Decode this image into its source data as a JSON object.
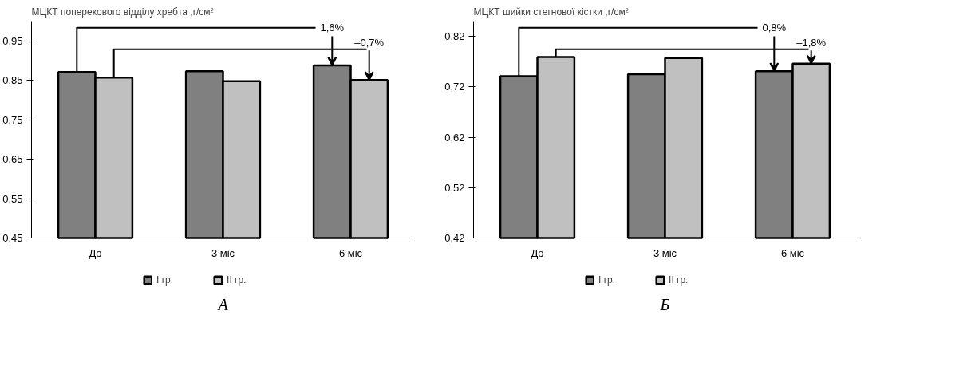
{
  "chart_data": [
    {
      "type": "bar",
      "title": "МЦКТ поперекового відділу хребта ,г/см²",
      "categories": [
        "До",
        "3 міс",
        "6 міс"
      ],
      "series": [
        {
          "name": "I гр.",
          "color": "#808080",
          "values": [
            0.871,
            0.873,
            0.888
          ]
        },
        {
          "name": "II гр.",
          "color": "#c0c0c0",
          "values": [
            0.857,
            0.848,
            0.851
          ]
        }
      ],
      "ylim": [
        0.45,
        1.0
      ],
      "yticks": [
        {
          "value": 0.45,
          "label": "0,45"
        },
        {
          "value": 0.55,
          "label": "0,55"
        },
        {
          "value": 0.65,
          "label": "0,65"
        },
        {
          "value": 0.75,
          "label": "0,75"
        },
        {
          "value": 0.85,
          "label": "0,85"
        },
        {
          "value": 0.95,
          "label": "0,95"
        }
      ],
      "legend": "bottom",
      "grid": false,
      "annotations": [
        {
          "text": "1,6%",
          "y": 0.888
        },
        {
          "text": "–0,7%",
          "y": 0.851
        },
        "А"
      ]
    },
    {
      "type": "bar",
      "title": "МЦКТ шийки стегнової кістки ,г/см²",
      "categories": [
        "До",
        "3 міс",
        "6 міс"
      ],
      "series": [
        {
          "name": "I гр.",
          "color": "#808080",
          "values": [
            0.741,
            0.745,
            0.751
          ]
        },
        {
          "name": "II гр.",
          "color": "#c0c0c0",
          "values": [
            0.779,
            0.777,
            0.766
          ]
        }
      ],
      "ylim": [
        0.42,
        0.85
      ],
      "yticks": [
        {
          "value": 0.42,
          "label": "0,42"
        },
        {
          "value": 0.52,
          "label": "0,52"
        },
        {
          "value": 0.62,
          "label": "0,62"
        },
        {
          "value": 0.72,
          "label": "0,72"
        },
        {
          "value": 0.82,
          "label": "0,82"
        }
      ],
      "legend": "bottom",
      "grid": false,
      "annotations": [
        {
          "text": "0,8%",
          "y": 0.751
        },
        {
          "text": "–1,8%",
          "y": 0.766
        },
        "Б"
      ]
    }
  ]
}
